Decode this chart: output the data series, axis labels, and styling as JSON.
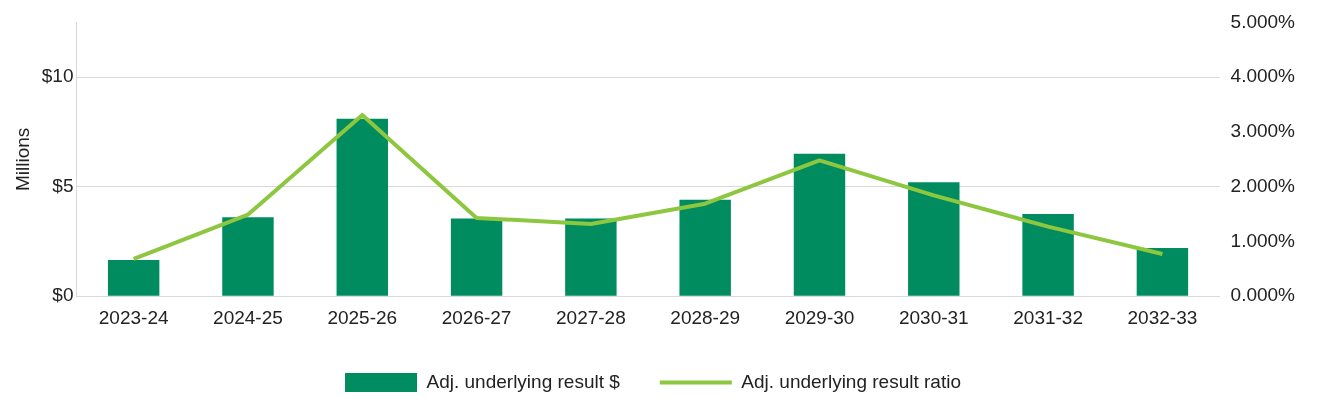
{
  "chart_data": {
    "type": "bar",
    "ylabel": "Millions",
    "categories": [
      "2023-24",
      "2024-25",
      "2025-26",
      "2026-27",
      "2027-28",
      "2028-29",
      "2029-30",
      "2030-31",
      "2031-32",
      "2032-33"
    ],
    "series": [
      {
        "name": "Adj. underlying result $",
        "color": "#008c5f",
        "values": [
          1.65,
          3.6,
          8.1,
          3.55,
          3.55,
          4.4,
          6.5,
          5.2,
          3.75,
          2.2
        ]
      },
      {
        "name": "Adj. underlying result ratio",
        "type": "line",
        "axis": "y2",
        "color": "#8dc63f",
        "values": [
          0.68,
          1.49,
          3.31,
          1.43,
          1.32,
          1.69,
          2.48,
          1.84,
          1.27,
          0.77
        ]
      }
    ],
    "ylim": [
      0,
      12.5
    ],
    "yticks": [
      {
        "value": 0,
        "label": "$0"
      },
      {
        "value": 5,
        "label": "$5"
      },
      {
        "value": 10,
        "label": "$10"
      }
    ],
    "y2lim": [
      0,
      5
    ],
    "y2ticks": [
      {
        "value": 0,
        "label": "0.000%"
      },
      {
        "value": 1,
        "label": "1.000%"
      },
      {
        "value": 2,
        "label": "2.000%"
      },
      {
        "value": 3,
        "label": "3.000%"
      },
      {
        "value": 4,
        "label": "4.000%"
      },
      {
        "value": 5,
        "label": "5.000%"
      }
    ],
    "grid": "y",
    "legend": "bottom",
    "marker": "none"
  }
}
